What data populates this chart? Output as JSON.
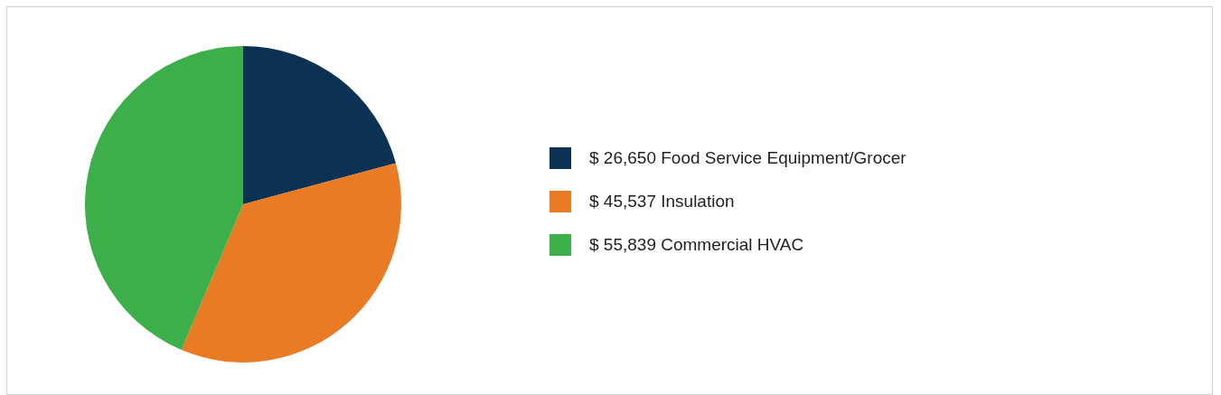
{
  "chart_data": {
    "type": "pie",
    "categories": [
      "Food Service Equipment/Grocer",
      "Insulation",
      "Commercial HVAC"
    ],
    "values": [
      26650,
      45537,
      55839
    ],
    "value_labels": [
      "$ 26,650",
      "$ 45,537",
      "$ 55,839"
    ],
    "colors": [
      "#0b3155",
      "#e97b24",
      "#3daf4a"
    ],
    "legend": "right"
  }
}
